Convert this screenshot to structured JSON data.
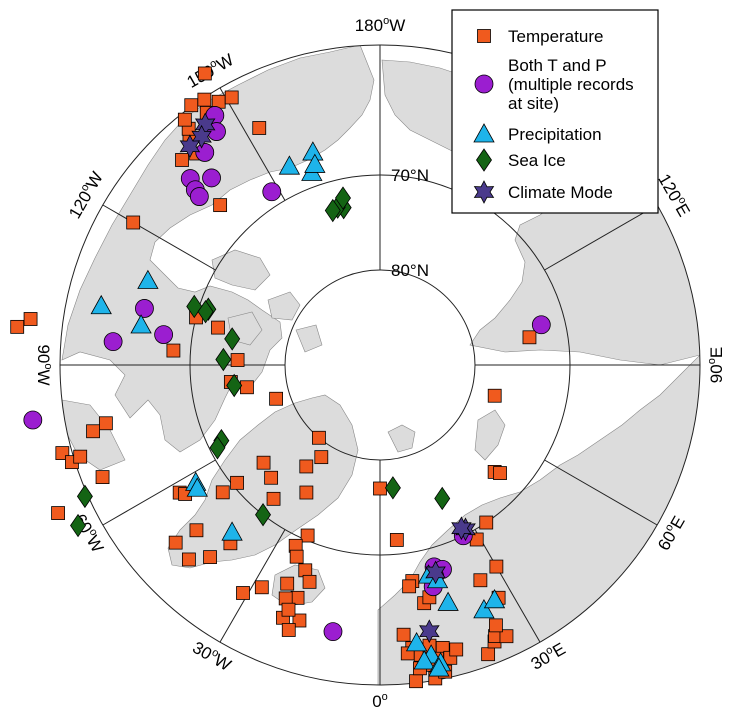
{
  "colors": {
    "temperature": "#f05a1e",
    "both": "#9b1ed0",
    "precipitation": "#1eb4ea",
    "sea_ice": "#146414",
    "climate_mode": "#4a3a8c",
    "land": "#dcdcdc"
  },
  "map": {
    "projection": "north polar stereographic",
    "latitude_circles": [
      {
        "lat": 70,
        "label": "70°N"
      },
      {
        "lat": 80,
        "label": "80°N"
      }
    ],
    "longitude_labels": [
      {
        "lon": 180,
        "deg": "180",
        "hemi": "W"
      },
      {
        "lon": -150,
        "deg": "150",
        "hemi": "W"
      },
      {
        "lon": -120,
        "deg": "120",
        "hemi": "W"
      },
      {
        "lon": -90,
        "deg": "90",
        "hemi": "W"
      },
      {
        "lon": -60,
        "deg": "60",
        "hemi": "W"
      },
      {
        "lon": -30,
        "deg": "30",
        "hemi": "W"
      },
      {
        "lon": 0,
        "deg": "0",
        "hemi": ""
      },
      {
        "lon": 30,
        "deg": "30",
        "hemi": "E"
      },
      {
        "lon": 60,
        "deg": "60",
        "hemi": "E"
      },
      {
        "lon": 90,
        "deg": "90",
        "hemi": "E"
      },
      {
        "lon": 120,
        "deg": "120",
        "hemi": "E"
      }
    ]
  },
  "legend": {
    "items": [
      {
        "key": "temperature",
        "shape": "square",
        "label_lines": [
          "Temperature"
        ]
      },
      {
        "key": "both",
        "shape": "circle",
        "label_lines": [
          "Both T and P",
          "(multiple records",
          "at site)"
        ]
      },
      {
        "key": "precipitation",
        "shape": "triangle",
        "label_lines": [
          "Precipitation"
        ]
      },
      {
        "key": "sea_ice",
        "shape": "diamond",
        "label_lines": [
          "Sea Ice"
        ]
      },
      {
        "key": "climate_mode",
        "shape": "star",
        "label_lines": [
          "Climate Mode"
        ]
      }
    ]
  },
  "sites": {
    "temperature": [
      [
        -139.0,
        60.5
      ],
      [
        -136.0,
        60.0
      ],
      [
        -140.0,
        58.8
      ],
      [
        -141.0,
        58.0
      ],
      [
        -141.5,
        57.0
      ],
      [
        -144.0,
        56.2
      ],
      [
        -145.5,
        57.8
      ],
      [
        -148.5,
        57.5
      ],
      [
        -151.0,
        57.8
      ],
      [
        -149.0,
        54.2
      ],
      [
        -146.5,
        56.5
      ],
      [
        -120.0,
        60.0
      ],
      [
        -97.5,
        52.9
      ],
      [
        -96.0,
        51.6
      ],
      [
        -103.0,
        72.5
      ],
      [
        -104.5,
        70.0
      ],
      [
        -94.0,
        68.2
      ],
      [
        -92.0,
        75.0
      ],
      [
        -83.5,
        74.2
      ],
      [
        -80.5,
        75.8
      ],
      [
        -72.0,
        78.5
      ],
      [
        -78.0,
        60.5
      ],
      [
        -77.0,
        59.0
      ],
      [
        -68.0,
        58.5
      ],
      [
        -74.5,
        55.3
      ],
      [
        -72.5,
        56.0
      ],
      [
        -73.0,
        57.0
      ],
      [
        -65.3,
        52.7
      ],
      [
        -57.5,
        65.0
      ],
      [
        -56.5,
        65.4
      ],
      [
        -48.0,
        64.0
      ],
      [
        -49.0,
        61.5
      ],
      [
        -44.5,
        61.3
      ],
      [
        -51.0,
        68.7
      ],
      [
        -50.5,
        70.5
      ],
      [
        -50.0,
        74.0
      ],
      [
        -44.0,
        73.5
      ],
      [
        -38.5,
        72.0
      ],
      [
        -40.0,
        65.5
      ],
      [
        -41.5,
        63.0
      ],
      [
        -32.5,
        78.5
      ],
      [
        -40.0,
        80.0
      ],
      [
        -36.0,
        76.8
      ],
      [
        -30.0,
        74.5
      ],
      [
        -23.0,
        70.5
      ],
      [
        -25.0,
        69.0
      ],
      [
        -23.5,
        68.0
      ],
      [
        -20.0,
        67.0
      ],
      [
        -18.0,
        66.0
      ],
      [
        -23.0,
        65.0
      ],
      [
        -19.5,
        64.0
      ],
      [
        -22.0,
        63.5
      ],
      [
        -28.0,
        63.5
      ],
      [
        -31.0,
        62.0
      ],
      [
        -21.0,
        61.5
      ],
      [
        -17.5,
        61.8
      ],
      [
        -20.5,
        62.5
      ],
      [
        -19.0,
        60.5
      ],
      [
        0.0,
        77.0
      ],
      [
        5.5,
        71.5
      ],
      [
        8.5,
        67.0
      ],
      [
        7.5,
        66.5
      ],
      [
        10.5,
        64.5
      ],
      [
        12.0,
        65.0
      ],
      [
        5.0,
        61.5
      ],
      [
        6.5,
        60.0
      ],
      [
        5.5,
        59.5
      ],
      [
        8.0,
        59.2
      ],
      [
        10.0,
        60.0
      ],
      [
        12.5,
        59.5
      ],
      [
        11.0,
        58.5
      ],
      [
        9.5,
        58.0
      ],
      [
        13.5,
        58.3
      ],
      [
        15.0,
        59.0
      ],
      [
        6.5,
        56.5
      ],
      [
        7.5,
        57.8
      ],
      [
        10.0,
        56.5
      ],
      [
        12.0,
        57.0
      ],
      [
        20.5,
        57.5
      ],
      [
        22.5,
        58.5
      ],
      [
        23.0,
        59.0
      ],
      [
        25.0,
        58.5
      ],
      [
        24.0,
        60.0
      ],
      [
        27.0,
        62.5
      ],
      [
        30.0,
        65.5
      ],
      [
        25.0,
        65.0
      ],
      [
        29.0,
        69.0
      ],
      [
        34.0,
        70.0
      ],
      [
        47.0,
        73.5
      ],
      [
        48.0,
        73.0
      ],
      [
        75.0,
        77.5
      ],
      [
        100.5,
        74.0
      ],
      [
        -153.0,
        62.0
      ],
      [
        -135.0,
        66.2
      ]
    ],
    "both": [
      [
        -146.5,
        58.5
      ],
      [
        -145.0,
        60.0
      ],
      [
        -140.5,
        61.0
      ],
      [
        -134.5,
        62.0
      ],
      [
        -138.0,
        63.5
      ],
      [
        -133.5,
        63.2
      ],
      [
        -133.0,
        64.0
      ],
      [
        -103.5,
        64.5
      ],
      [
        -95.0,
        61.8
      ],
      [
        -98.0,
        67.0
      ],
      [
        -81.0,
        53.0
      ],
      [
        -10.0,
        61.5
      ],
      [
        15.0,
        68.0
      ],
      [
        17.0,
        67.5
      ],
      [
        14.5,
        67.0
      ],
      [
        13.5,
        66.0
      ],
      [
        26.0,
        70.0
      ],
      [
        104.0,
        72.5
      ],
      [
        -148.0,
        68.5
      ]
    ],
    "precipitation": [
      [
        -155.5,
        67.0
      ],
      [
        -160.5,
        68.5
      ],
      [
        -162.5,
        66.5
      ],
      [
        -110.0,
        64.0
      ],
      [
        -102.0,
        60.0
      ],
      [
        -99.5,
        64.5
      ],
      [
        -57.5,
        67.0
      ],
      [
        -56.0,
        66.8
      ],
      [
        -41.5,
        66.5
      ],
      [
        13.0,
        67.3
      ],
      [
        15.0,
        66.6
      ],
      [
        16.0,
        64.0
      ],
      [
        7.5,
        60.5
      ],
      [
        10.0,
        59.0
      ],
      [
        8.5,
        58.5
      ],
      [
        11.5,
        58.0
      ],
      [
        11.0,
        57.5
      ],
      [
        23.0,
        62.0
      ],
      [
        26.0,
        62.5
      ],
      [
        -162.0,
        67.8
      ]
    ],
    "sea_ice": [
      [
        -167.0,
        73.0
      ],
      [
        -165.0,
        72.8
      ],
      [
        -163.0,
        73.0
      ],
      [
        -108.0,
        71.0
      ],
      [
        -107.5,
        69.5
      ],
      [
        -107.0,
        70.8
      ],
      [
        -100.0,
        74.2
      ],
      [
        -92.0,
        73.5
      ],
      [
        -82.0,
        74.5
      ],
      [
        -64.5,
        71.5
      ],
      [
        -63.0,
        70.8
      ],
      [
        -66.0,
        56.0
      ],
      [
        -62.0,
        54.0
      ],
      [
        -38.0,
        70.0
      ],
      [
        6.0,
        77.0
      ],
      [
        25.0,
        74.5
      ],
      [
        -167.5,
        72.0
      ]
    ],
    "climate_mode": [
      [
        -144.0,
        58.7
      ],
      [
        -142.0,
        59.5
      ],
      [
        -139.0,
        59.5
      ],
      [
        15.0,
        67.4
      ],
      [
        27.5,
        70.5
      ],
      [
        10.5,
        61.5
      ],
      [
        26.5,
        70.8
      ]
    ]
  }
}
